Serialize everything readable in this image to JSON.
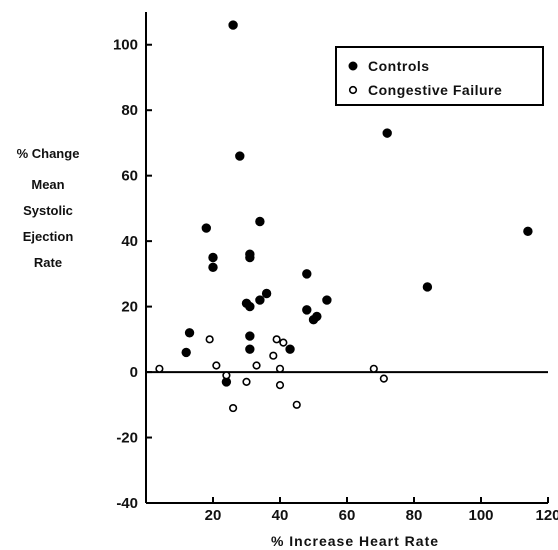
{
  "chart_data": {
    "type": "scatter",
    "xlabel": "% Increase Heart Rate",
    "ylabel_lines": [
      "% Change",
      "Mean",
      "Systolic",
      "Ejection",
      "Rate"
    ],
    "xlim": [
      0,
      120
    ],
    "ylim": [
      -40,
      110
    ],
    "x_ticks": [
      20,
      40,
      60,
      80,
      100,
      120
    ],
    "y_ticks": [
      -40,
      -20,
      0,
      20,
      40,
      60,
      80,
      100
    ],
    "grid": false,
    "legend_position": "top-right",
    "series": [
      {
        "name": "Controls",
        "marker": "filled-circle",
        "points": [
          [
            26,
            106
          ],
          [
            28,
            66
          ],
          [
            72,
            73
          ],
          [
            114,
            43
          ],
          [
            34,
            46
          ],
          [
            18,
            44
          ],
          [
            20,
            35
          ],
          [
            20,
            32
          ],
          [
            31,
            36
          ],
          [
            31,
            35
          ],
          [
            48,
            30
          ],
          [
            84,
            26
          ],
          [
            36,
            24
          ],
          [
            34,
            22
          ],
          [
            30,
            21
          ],
          [
            31,
            20
          ],
          [
            54,
            22
          ],
          [
            48,
            19
          ],
          [
            51,
            17
          ],
          [
            50,
            16
          ],
          [
            13,
            12
          ],
          [
            31,
            11
          ],
          [
            31,
            7
          ],
          [
            43,
            7
          ],
          [
            12,
            6
          ],
          [
            24,
            -3
          ]
        ]
      },
      {
        "name": "Congestive Failure",
        "marker": "open-circle",
        "points": [
          [
            4,
            1
          ],
          [
            19,
            10
          ],
          [
            39,
            10
          ],
          [
            41,
            9
          ],
          [
            38,
            5
          ],
          [
            21,
            2
          ],
          [
            33,
            2
          ],
          [
            40,
            1
          ],
          [
            68,
            1
          ],
          [
            24,
            -1
          ],
          [
            30,
            -3
          ],
          [
            40,
            -4
          ],
          [
            71,
            -2
          ],
          [
            45,
            -10
          ],
          [
            26,
            -11
          ]
        ]
      }
    ]
  }
}
